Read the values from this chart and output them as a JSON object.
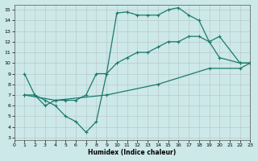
{
  "xlabel": "Humidex (Indice chaleur)",
  "bg_color": "#cce8e8",
  "grid_color": "#aaaaaa",
  "line_color": "#1a7a6e",
  "xlim": [
    0,
    23
  ],
  "ylim": [
    3,
    15.5
  ],
  "xticks": [
    0,
    1,
    2,
    3,
    4,
    5,
    6,
    7,
    8,
    9,
    10,
    11,
    12,
    13,
    14,
    15,
    16,
    17,
    18,
    19,
    20,
    21,
    22,
    23
  ],
  "yticks": [
    3,
    4,
    5,
    6,
    7,
    8,
    9,
    10,
    11,
    12,
    13,
    14,
    15
  ],
  "line1_x": [
    1,
    2,
    3,
    4,
    5,
    6,
    7,
    8,
    9,
    10,
    11,
    12,
    13,
    14,
    15,
    16,
    17,
    18,
    19,
    20,
    22,
    23
  ],
  "line1_y": [
    9,
    7,
    6.5,
    6,
    5,
    4.5,
    3.5,
    4.5,
    9,
    14.7,
    14.8,
    14.5,
    14.5,
    14.5,
    15,
    15.2,
    14.5,
    14,
    12,
    10.5,
    10,
    10
  ],
  "line2_x": [
    1,
    2,
    3,
    4,
    5,
    6,
    7,
    8,
    9,
    10,
    11,
    12,
    13,
    14,
    15,
    16,
    17,
    18,
    19,
    20,
    22,
    23
  ],
  "line2_y": [
    7,
    7,
    6,
    6.5,
    6.5,
    6.5,
    7,
    9,
    9,
    10,
    10.5,
    11,
    11,
    11.5,
    12,
    12,
    12.5,
    12.5,
    12,
    12.5,
    10,
    10
  ],
  "line3_x": [
    1,
    4,
    9,
    14,
    19,
    22,
    23
  ],
  "line3_y": [
    7,
    6.5,
    7,
    8,
    9.5,
    9.5,
    10
  ]
}
